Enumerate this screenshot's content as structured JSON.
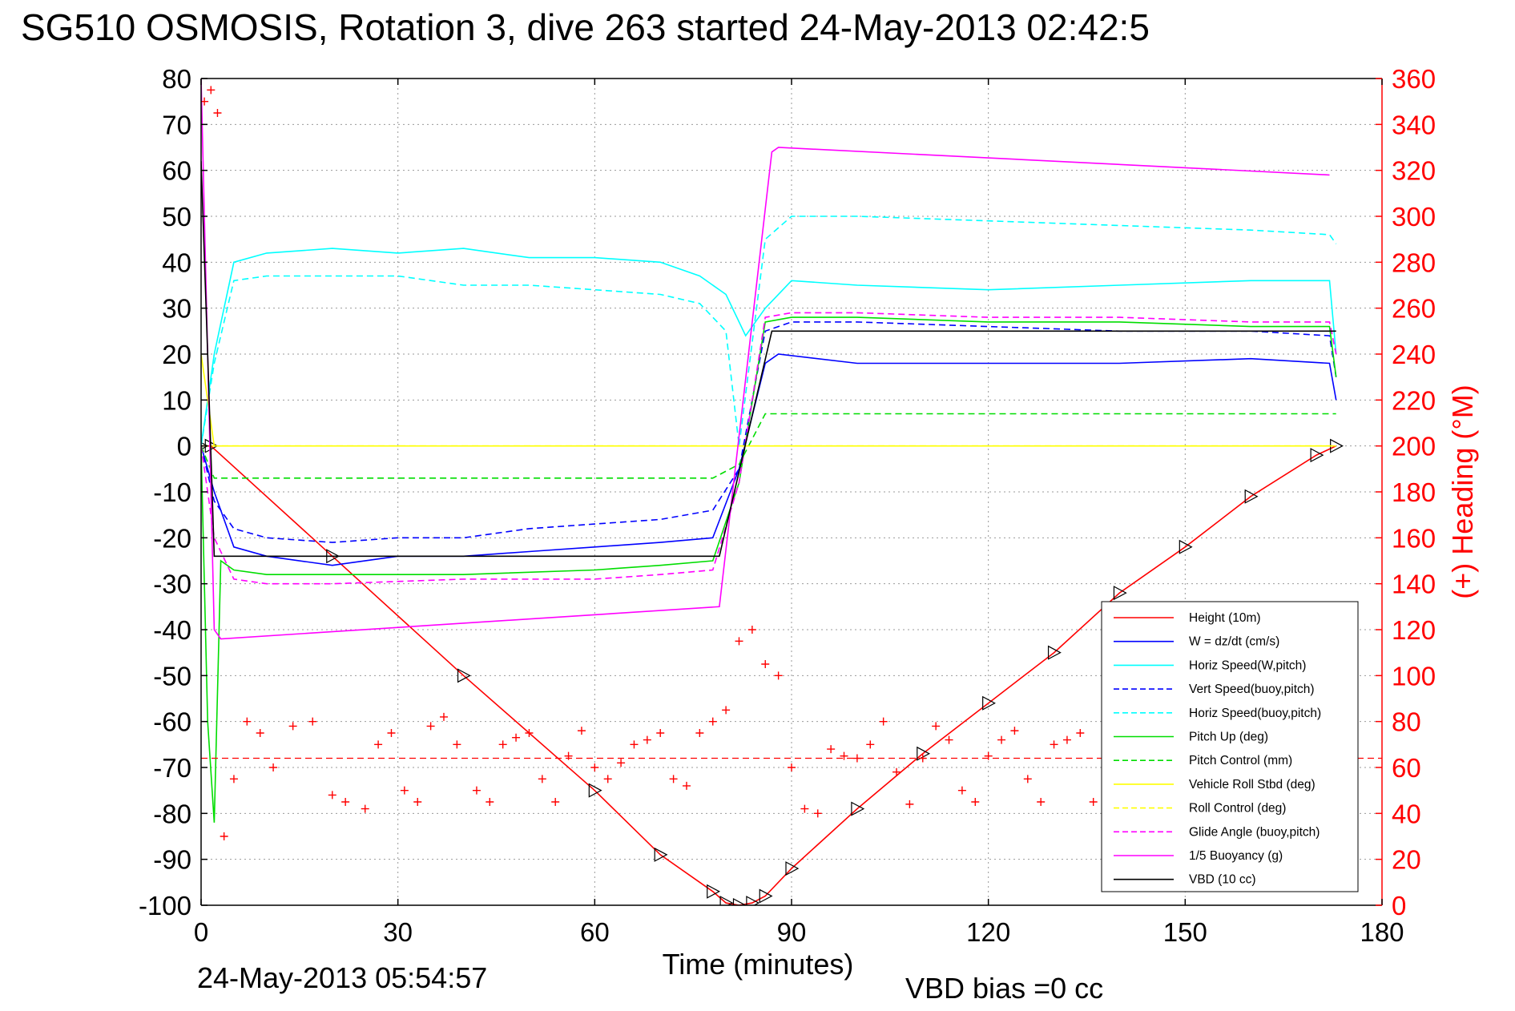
{
  "chart_data": {
    "type": "line",
    "title": "SG510 OSMOSIS, Rotation 3, dive 263 started 24-May-2013 02:42:5",
    "xlabel": "Time (minutes)",
    "ylabel_right": "(+) Heading (°M)",
    "footer_left": "24-May-2013 05:54:57",
    "footer_right": "VBD bias =0 cc",
    "xlim": [
      0,
      180
    ],
    "ylim": [
      -100,
      80
    ],
    "ylim_right": [
      0,
      360
    ],
    "x_ticks": [
      "0",
      "30",
      "60",
      "90",
      "120",
      "150",
      "180"
    ],
    "y_ticks": [
      "80",
      "70",
      "60",
      "50",
      "40",
      "30",
      "20",
      "10",
      "0",
      "-10",
      "-20",
      "-30",
      "-40",
      "-50",
      "-60",
      "-70",
      "-80",
      "-90",
      "-100"
    ],
    "y_ticks_right": [
      "360",
      "340",
      "320",
      "300",
      "280",
      "260",
      "240",
      "220",
      "200",
      "180",
      "160",
      "140",
      "120",
      "100",
      "80",
      "60",
      "40",
      "20",
      "0"
    ],
    "grid": true,
    "legend_position": "bottom-right",
    "series": [
      {
        "name": "Height (10m)",
        "color": "#ff0000",
        "style": "solid",
        "marker": "triangles",
        "x": [
          0,
          1.5,
          20,
          40,
          60,
          70,
          78,
          80,
          82,
          84,
          86,
          90,
          100,
          110,
          120,
          130,
          140,
          150,
          160,
          170,
          173
        ],
        "y": [
          0,
          0,
          -24,
          -50,
          -75,
          -89,
          -97,
          -99.5,
          -100,
          -99.5,
          -98,
          -92,
          -79,
          -67,
          -56,
          -45,
          -32,
          -22,
          -11,
          -2,
          0
        ]
      },
      {
        "name": "W = dz/dt (cm/s)",
        "color": "#0000ff",
        "style": "solid",
        "x": [
          0,
          2,
          5,
          10,
          20,
          30,
          40,
          50,
          60,
          70,
          78,
          82,
          86,
          88,
          100,
          120,
          140,
          160,
          172,
          173
        ],
        "y": [
          0,
          -10,
          -22,
          -24,
          -26,
          -24,
          -24,
          -23,
          -22,
          -21,
          -20,
          -5,
          18,
          20,
          18,
          18,
          18,
          19,
          18,
          10
        ]
      },
      {
        "name": "Horiz Speed(W,pitch)",
        "color": "#00ffff",
        "style": "solid",
        "x": [
          0,
          2,
          5,
          10,
          20,
          30,
          40,
          50,
          60,
          70,
          76,
          80,
          83,
          86,
          90,
          100,
          120,
          140,
          160,
          172,
          173
        ],
        "y": [
          0,
          20,
          40,
          42,
          43,
          42,
          43,
          41,
          41,
          40,
          37,
          33,
          24,
          30,
          36,
          35,
          34,
          35,
          36,
          36,
          20
        ]
      },
      {
        "name": "Vert Speed(buoy,pitch)",
        "color": "#0000ff",
        "style": "dashed",
        "x": [
          0,
          2,
          5,
          10,
          20,
          30,
          40,
          50,
          60,
          70,
          78,
          82,
          86,
          90,
          100,
          120,
          140,
          160,
          172,
          173
        ],
        "y": [
          0,
          -12,
          -18,
          -20,
          -21,
          -20,
          -20,
          -18,
          -17,
          -16,
          -14,
          -5,
          25,
          27,
          27,
          26,
          25,
          25,
          24,
          15
        ]
      },
      {
        "name": "Horiz Speed(buoy,pitch)",
        "color": "#00ffff",
        "style": "dashed",
        "x": [
          0,
          2,
          5,
          10,
          20,
          30,
          40,
          50,
          60,
          70,
          76,
          80,
          82,
          86,
          90,
          100,
          120,
          140,
          160,
          172,
          173
        ],
        "y": [
          0,
          18,
          36,
          37,
          37,
          37,
          35,
          35,
          34,
          33,
          31,
          25,
          0,
          45,
          50,
          50,
          49,
          48,
          47,
          46,
          44
        ]
      },
      {
        "name": "Pitch Up (deg)",
        "color": "#00dd00",
        "style": "solid",
        "x": [
          0,
          1,
          2,
          3,
          5,
          10,
          20,
          40,
          60,
          70,
          78,
          82,
          86,
          90,
          100,
          120,
          140,
          160,
          172,
          173
        ],
        "y": [
          0,
          -60,
          -82,
          -25,
          -27,
          -28,
          -28,
          -28,
          -27,
          -26,
          -25,
          -8,
          27,
          28,
          28,
          27,
          27,
          26,
          26,
          15
        ]
      },
      {
        "name": "Pitch Control (mm)",
        "color": "#00dd00",
        "style": "dashed",
        "x": [
          0,
          2,
          5,
          78,
          82,
          86,
          173
        ],
        "y": [
          0,
          -7,
          -7,
          -7,
          -4,
          7,
          7
        ]
      },
      {
        "name": "Vehicle Roll Stbd (deg)",
        "color": "#ffff00",
        "style": "solid",
        "x": [
          0,
          2,
          5,
          20,
          40,
          60,
          80,
          100,
          120,
          140,
          160,
          173
        ],
        "y": [
          20,
          0,
          0,
          0,
          0,
          0,
          0,
          0,
          0,
          0,
          0,
          0
        ]
      },
      {
        "name": "Roll Control (deg)",
        "color": "#ffff00",
        "style": "dashed",
        "x": [
          0,
          173
        ],
        "y": [
          0,
          0
        ]
      },
      {
        "name": "Glide Angle (buoy,pitch)",
        "color": "#ff00ff",
        "style": "dashed",
        "x": [
          0,
          2,
          5,
          10,
          20,
          40,
          60,
          70,
          78,
          82,
          86,
          90,
          100,
          120,
          140,
          160,
          172,
          173
        ],
        "y": [
          0,
          -20,
          -29,
          -30,
          -30,
          -29,
          -29,
          -28,
          -27,
          -8,
          28,
          29,
          29,
          28,
          28,
          27,
          27,
          20
        ]
      },
      {
        "name": "1/5 Buoyancy (g)",
        "color": "#ff00ff",
        "style": "solid",
        "x": [
          0,
          1,
          2,
          3,
          79,
          87,
          88,
          172
        ],
        "y": [
          80,
          20,
          -40,
          -42,
          -35,
          64,
          65,
          59
        ]
      },
      {
        "name": "VBD (10 cc)",
        "color": "#000000",
        "style": "solid",
        "x": [
          0,
          1,
          2,
          3,
          79,
          87,
          173
        ],
        "y": [
          62,
          20,
          -24,
          -24,
          -24,
          25,
          25
        ]
      }
    ],
    "heading_series": {
      "name": "(+) Heading",
      "color": "#ff0000",
      "marker": "+",
      "mean_line_right": 64,
      "x": [
        0.5,
        1.5,
        2.5,
        3.5,
        5,
        7,
        9,
        11,
        14,
        17,
        20,
        22,
        25,
        27,
        29,
        31,
        33,
        35,
        37,
        39,
        42,
        44,
        46,
        48,
        50,
        52,
        54,
        56,
        58,
        60,
        62,
        64,
        66,
        68,
        70,
        72,
        74,
        76,
        78,
        80,
        82,
        84,
        86,
        88,
        90,
        92,
        94,
        96,
        98,
        100,
        102,
        104,
        106,
        108,
        110,
        112,
        114,
        116,
        118,
        120,
        122,
        124,
        126,
        128,
        130,
        132,
        134,
        136,
        138
      ],
      "y": [
        350,
        355,
        345,
        30,
        55,
        80,
        75,
        60,
        78,
        80,
        48,
        45,
        42,
        70,
        75,
        50,
        45,
        78,
        82,
        70,
        50,
        45,
        70,
        73,
        75,
        55,
        45,
        65,
        76,
        60,
        55,
        62,
        70,
        72,
        75,
        55,
        52,
        75,
        80,
        85,
        115,
        120,
        105,
        100,
        60,
        42,
        40,
        68,
        65,
        64,
        70,
        80,
        58,
        44,
        64,
        78,
        72,
        50,
        45,
        65,
        72,
        76,
        55,
        45,
        70,
        72,
        75,
        45,
        40
      ]
    }
  }
}
